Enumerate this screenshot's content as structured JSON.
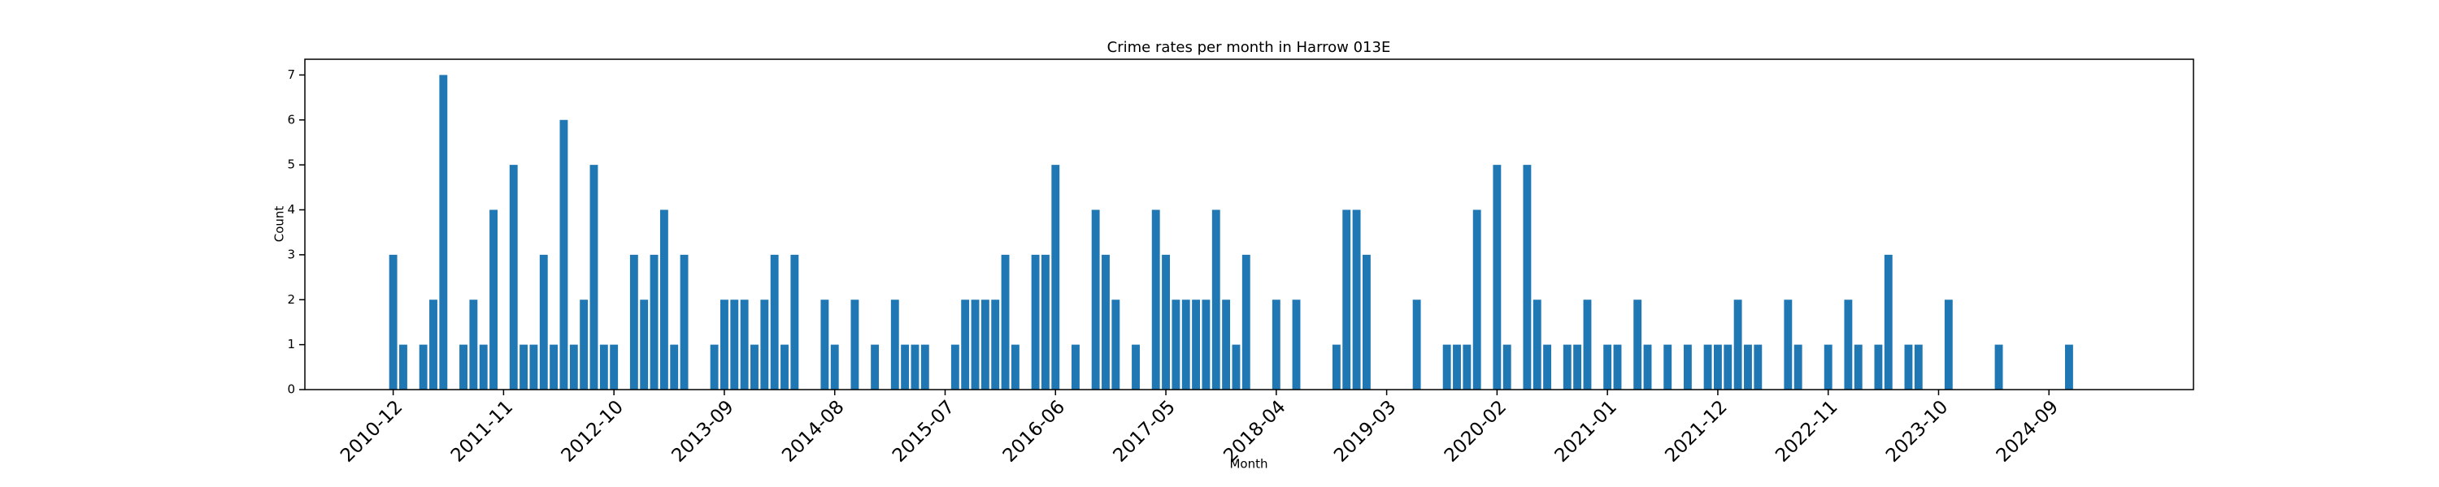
{
  "chart_data": {
    "type": "bar",
    "title": "Crime rates per month in Harrow 013E",
    "xlabel": "Month",
    "ylabel": "Count",
    "categories": [
      "2010-12",
      null,
      null,
      null,
      null,
      null,
      null,
      null,
      null,
      null,
      null,
      "2011-11",
      null,
      null,
      null,
      null,
      null,
      null,
      null,
      null,
      null,
      null,
      "2012-10",
      null,
      null,
      null,
      null,
      null,
      null,
      null,
      null,
      null,
      null,
      "2013-09",
      null,
      null,
      null,
      null,
      null,
      null,
      null,
      null,
      null,
      null,
      "2014-08",
      null,
      null,
      null,
      null,
      null,
      null,
      null,
      null,
      null,
      null,
      "2015-07",
      null,
      null,
      null,
      null,
      null,
      null,
      null,
      null,
      null,
      null,
      "2016-06",
      null,
      null,
      null,
      null,
      null,
      null,
      null,
      null,
      null,
      null,
      "2017-05",
      null,
      null,
      null,
      null,
      null,
      null,
      null,
      null,
      null,
      null,
      "2018-04",
      null,
      null,
      null,
      null,
      null,
      null,
      null,
      null,
      null,
      null,
      "2019-03",
      null,
      null,
      null,
      null,
      null,
      null,
      null,
      null,
      null,
      null,
      "2020-02",
      null,
      null,
      null,
      null,
      null,
      null,
      null,
      null,
      null,
      null,
      "2021-01",
      null,
      null,
      null,
      null,
      null,
      null,
      null,
      null,
      null,
      null,
      "2021-12",
      null,
      null,
      null,
      null,
      null,
      null,
      null,
      null,
      null,
      null,
      "2022-11",
      null,
      null,
      null,
      null,
      null,
      null,
      null,
      null,
      null,
      null,
      "2023-10",
      null,
      null,
      null,
      null,
      null,
      null,
      null,
      null,
      null,
      null,
      "2024-09",
      null,
      null
    ],
    "values": [
      3,
      1,
      0,
      1,
      2,
      7,
      0,
      1,
      2,
      1,
      4,
      0,
      5,
      1,
      1,
      3,
      1,
      6,
      1,
      2,
      5,
      1,
      1,
      0,
      3,
      2,
      3,
      4,
      1,
      3,
      0,
      0,
      1,
      2,
      2,
      2,
      1,
      2,
      3,
      1,
      3,
      0,
      0,
      2,
      1,
      0,
      2,
      0,
      1,
      0,
      2,
      1,
      1,
      1,
      0,
      0,
      1,
      2,
      2,
      2,
      2,
      3,
      1,
      0,
      3,
      3,
      5,
      0,
      1,
      0,
      4,
      3,
      2,
      0,
      1,
      0,
      4,
      3,
      2,
      2,
      2,
      2,
      4,
      2,
      1,
      3,
      0,
      0,
      2,
      0,
      2,
      0,
      0,
      0,
      1,
      4,
      4,
      3,
      0,
      0,
      0,
      0,
      2,
      0,
      0,
      1,
      1,
      1,
      4,
      0,
      5,
      1,
      0,
      5,
      2,
      1,
      0,
      1,
      1,
      2,
      0,
      1,
      1,
      0,
      2,
      1,
      0,
      1,
      0,
      1,
      0,
      1,
      1,
      1,
      2,
      1,
      1,
      0,
      0,
      2,
      1,
      0,
      0,
      1,
      0,
      2,
      1,
      0,
      1,
      3,
      0,
      1,
      1,
      0,
      0,
      2,
      0,
      0,
      0,
      0,
      1,
      0,
      0,
      0,
      0,
      0,
      0,
      1
    ],
    "color": "#1f77b4",
    "xlim": [
      -8.8,
      179.4
    ],
    "ylim": [
      0,
      7.35
    ],
    "yticks": [
      0,
      1,
      2,
      3,
      4,
      5,
      6,
      7
    ]
  }
}
